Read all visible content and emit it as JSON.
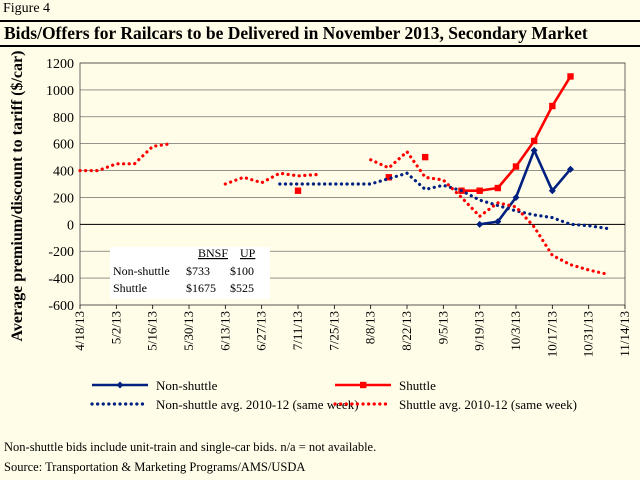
{
  "figure_label": "Figure 4",
  "title": "Bids/Offers for Railcars to be Delivered in November 2013, Secondary Market",
  "footnote": "Non-shuttle bids include unit-train and single-car bids.  n/a = not available.",
  "source": "Source:  Transportation & Marketing Programs/AMS/USDA",
  "colors": {
    "shuttle": "#ff0000",
    "nonshuttle": "#002080",
    "background": "#fffde8"
  },
  "chart_data": {
    "type": "line",
    "ylabel": "Average premium/discount to tariff  ($/car)",
    "ylim": [
      -600,
      1200
    ],
    "yticks": [
      1200,
      1000,
      800,
      600,
      400,
      200,
      0,
      -200,
      -400,
      -600
    ],
    "x_tick_labels": [
      "4/18/13",
      "5/2/13",
      "5/16/13",
      "5/30/13",
      "6/13/13",
      "6/27/13",
      "7/11/13",
      "7/25/13",
      "8/8/13",
      "8/22/13",
      "9/5/13",
      "9/19/13",
      "10/3/13",
      "10/17/13",
      "10/31/13",
      "11/14/13"
    ],
    "xlim": [
      "4/18/13",
      "11/14/13"
    ],
    "grid": "horizontal",
    "legend_position": "bottom",
    "series": [
      {
        "name": "Non-shuttle",
        "style": "solid-diamond",
        "color": "#002080",
        "points": [
          [
            "9/19/13",
            0
          ],
          [
            "9/26/13",
            20
          ],
          [
            "10/3/13",
            200
          ],
          [
            "10/10/13",
            550
          ],
          [
            "10/17/13",
            250
          ],
          [
            "10/24/13",
            410
          ]
        ]
      },
      {
        "name": "Shuttle",
        "style": "solid-square",
        "color": "#ff0000",
        "points": [
          [
            "9/12/13",
            250
          ],
          [
            "9/19/13",
            250
          ],
          [
            "9/26/13",
            270
          ],
          [
            "10/3/13",
            430
          ],
          [
            "10/10/13",
            620
          ],
          [
            "10/17/13",
            880
          ],
          [
            "10/24/13",
            1100
          ]
        ]
      },
      {
        "name": "Shuttle",
        "style": "square-markers",
        "color": "#ff0000",
        "points": [
          [
            "7/11/13",
            250
          ],
          [
            "8/15/13",
            350
          ],
          [
            "8/29/13",
            500
          ]
        ]
      },
      {
        "name": "Non-shuttle avg. 2010-12 (same week)",
        "style": "dotted",
        "color": "#002080",
        "points": [
          [
            "7/4/13",
            300
          ],
          [
            "7/18/13",
            300
          ],
          [
            "7/25/13",
            300
          ],
          [
            "8/1/13",
            300
          ],
          [
            "8/8/13",
            300
          ],
          [
            "8/22/13",
            380
          ],
          [
            "8/29/13",
            260
          ],
          [
            "9/5/13",
            290
          ],
          [
            "9/12/13",
            250
          ],
          [
            "9/19/13",
            180
          ],
          [
            "9/26/13",
            140
          ],
          [
            "10/3/13",
            100
          ],
          [
            "10/10/13",
            70
          ],
          [
            "10/17/13",
            50
          ],
          [
            "10/24/13",
            0
          ],
          [
            "10/31/13",
            -10
          ],
          [
            "11/7/13",
            -30
          ]
        ]
      },
      {
        "name": "Shuttle avg. 2010-12 (same week)",
        "style": "dotted",
        "color": "#ff0000",
        "segments": [
          [
            [
              "4/18/13",
              400
            ],
            [
              "4/25/13",
              400
            ],
            [
              "5/2/13",
              450
            ],
            [
              "5/9/13",
              450
            ],
            [
              "5/16/13",
              580
            ],
            [
              "5/23/13",
              600
            ]
          ],
          [
            [
              "6/13/13",
              300
            ],
            [
              "6/20/13",
              350
            ],
            [
              "6/27/13",
              310
            ],
            [
              "7/4/13",
              380
            ],
            [
              "7/11/13",
              360
            ],
            [
              "7/18/13",
              370
            ]
          ],
          [
            [
              "8/8/13",
              480
            ],
            [
              "8/15/13",
              420
            ],
            [
              "8/22/13",
              540
            ],
            [
              "8/29/13",
              350
            ],
            [
              "9/5/13",
              330
            ],
            [
              "9/12/13",
              200
            ],
            [
              "9/19/13",
              60
            ],
            [
              "9/26/13",
              160
            ],
            [
              "10/3/13",
              130
            ],
            [
              "10/10/13",
              -20
            ],
            [
              "10/17/13",
              -230
            ],
            [
              "10/24/13",
              -300
            ],
            [
              "10/31/13",
              -340
            ],
            [
              "11/7/13",
              -370
            ]
          ]
        ]
      }
    ],
    "inset_table": {
      "headers": [
        "",
        "BNSF",
        "UP"
      ],
      "rows": [
        [
          "Non-shuttle",
          "$733",
          "$100"
        ],
        [
          "Shuttle",
          "$1675",
          "$525"
        ]
      ]
    }
  }
}
